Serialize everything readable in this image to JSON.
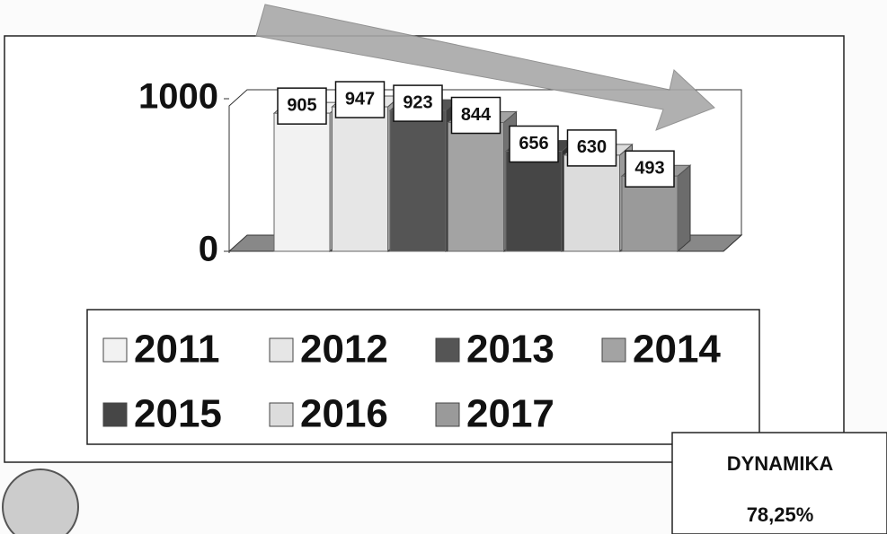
{
  "chart_data": {
    "type": "bar",
    "categories": [
      "2011",
      "2012",
      "2013",
      "2014",
      "2015",
      "2016",
      "2017"
    ],
    "values": [
      905,
      947,
      923,
      844,
      656,
      630,
      493
    ],
    "colors": [
      "#f2f2f2",
      "#e6e6e6",
      "#555555",
      "#a3a3a3",
      "#464646",
      "#dcdcdc",
      "#9a9a9a"
    ],
    "ylim": [
      0,
      1000
    ],
    "yticks": [
      0,
      1000
    ],
    "dynamics_title": "DYNAMIKA",
    "dynamics_value": "78,25%"
  }
}
